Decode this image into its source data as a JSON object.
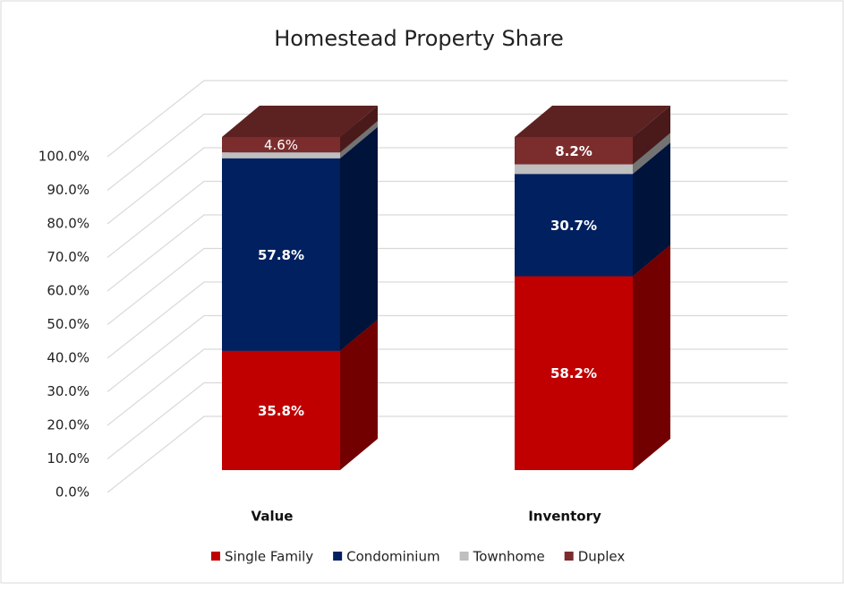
{
  "chart_data": {
    "type": "bar3d_stacked",
    "title": "Homestead Property Share",
    "categories": [
      "Value",
      "Inventory"
    ],
    "series": [
      {
        "name": "Single Family",
        "color": "#c00000",
        "values": [
          35.8,
          58.2
        ],
        "value_labels": [
          "35.8%",
          "58.2%"
        ]
      },
      {
        "name": "Condominium",
        "color": "#002060",
        "values": [
          57.8,
          30.7
        ],
        "value_labels": [
          "57.8%",
          "30.7%"
        ]
      },
      {
        "name": "Townhome",
        "color": "#bfbfbf",
        "values": [
          1.8,
          2.9
        ],
        "value_labels": [
          null,
          null
        ]
      },
      {
        "name": "Duplex",
        "color": "#7b2c2c",
        "values": [
          4.6,
          8.2
        ],
        "value_labels": [
          "4.6%",
          "8.2%"
        ]
      }
    ],
    "ylim": [
      0,
      100
    ],
    "yticks": [
      {
        "value": 0,
        "label": "0.0%"
      },
      {
        "value": 10,
        "label": "10.0%"
      },
      {
        "value": 20,
        "label": "20.0%"
      },
      {
        "value": 30,
        "label": "30.0%"
      },
      {
        "value": 40,
        "label": "40.0%"
      },
      {
        "value": 50,
        "label": "50.0%"
      },
      {
        "value": 60,
        "label": "60.0%"
      },
      {
        "value": 70,
        "label": "70.0%"
      },
      {
        "value": 80,
        "label": "80.0%"
      },
      {
        "value": 90,
        "label": "90.0%"
      },
      {
        "value": 100,
        "label": "100.0%"
      }
    ],
    "grid": true,
    "legend": "bottom"
  }
}
